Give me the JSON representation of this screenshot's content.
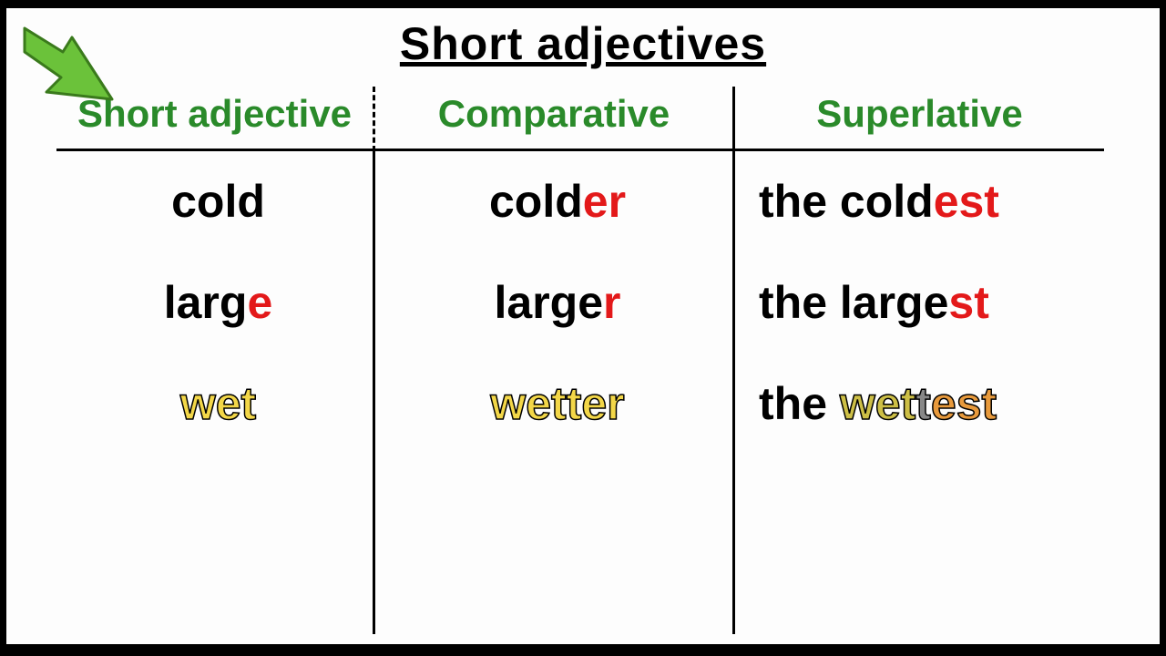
{
  "title": "Short adjectives",
  "colors": {
    "title": "#000000",
    "header_text": "#2a8a2a",
    "base_text": "#000000",
    "highlight_red": "#e3191a",
    "row3_yellow": "#f3d748",
    "row3_orange1": "#cdbf46",
    "row3_orange2": "#e89a3c",
    "background": "#fdfdfd",
    "page_border": "#000000",
    "letterbox": "#000000",
    "arrow_fill": "#6bc23a",
    "arrow_stroke": "#3a7a1c"
  },
  "fonts": {
    "family": "Comic Sans MS, Chalkboard SE, cursive",
    "title_size": 50,
    "header_size": 42,
    "cell_size": 50,
    "weight": "bold"
  },
  "layout": {
    "columns": [
      350,
      395,
      405
    ],
    "header_border_bottom": "3px solid",
    "col1_header_divider": "dashed",
    "col2_header_divider": "solid",
    "body_divider": "solid"
  },
  "headers": {
    "col1": "Short adjective",
    "col2": "Comparative",
    "col3": "Superlative"
  },
  "rows": {
    "r1": {
      "style": "black-red-suffix",
      "c1": {
        "segments": [
          {
            "t": "cold",
            "c": "#000000"
          }
        ]
      },
      "c2": {
        "segments": [
          {
            "t": "cold",
            "c": "#000000"
          },
          {
            "t": "er",
            "c": "#e3191a"
          }
        ]
      },
      "c3": {
        "segments": [
          {
            "t": "the cold",
            "c": "#000000"
          },
          {
            "t": "est",
            "c": "#e3191a"
          }
        ]
      }
    },
    "r2": {
      "style": "black-red-suffix",
      "c1": {
        "segments": [
          {
            "t": "larg",
            "c": "#000000"
          },
          {
            "t": "e",
            "c": "#e3191a"
          }
        ]
      },
      "c2": {
        "segments": [
          {
            "t": "large",
            "c": "#000000"
          },
          {
            "t": "r",
            "c": "#e3191a"
          }
        ]
      },
      "c3": {
        "segments": [
          {
            "t": "the large",
            "c": "#000000"
          },
          {
            "t": "st",
            "c": "#e3191a"
          }
        ]
      }
    },
    "r3": {
      "style": "yellow-outlined",
      "c1": {
        "segments": [
          {
            "t": "wet",
            "c": "#f3d748",
            "outlined": true
          }
        ]
      },
      "c2": {
        "segments": [
          {
            "t": "wetter",
            "c": "#f3d748",
            "outlined": true
          }
        ]
      },
      "c3": {
        "segments": [
          {
            "t": "the ",
            "c": "#000000"
          },
          {
            "t": "wet",
            "c": "#cdbf46",
            "outlined": true
          },
          {
            "t": "t",
            "c": "#888888",
            "outlined": true
          },
          {
            "t": "est",
            "c": "#e89a3c",
            "outlined": true
          }
        ]
      }
    }
  }
}
